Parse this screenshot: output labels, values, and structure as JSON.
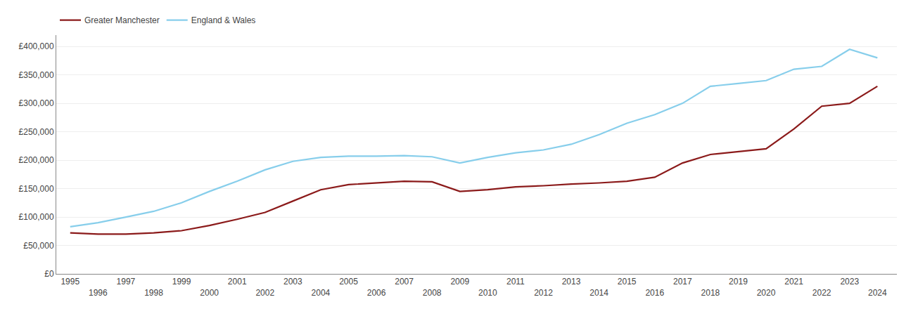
{
  "chart_data": {
    "type": "line",
    "series": [
      {
        "name": "Greater Manchester",
        "color": "#8B1A1A",
        "x": [
          1995,
          1996,
          1997,
          1998,
          1999,
          2000,
          2001,
          2002,
          2003,
          2004,
          2005,
          2006,
          2007,
          2008,
          2009,
          2010,
          2011,
          2012,
          2013,
          2014,
          2015,
          2016,
          2017,
          2018,
          2019,
          2020,
          2021,
          2022,
          2023,
          2024
        ],
        "values": [
          72000,
          70000,
          70000,
          72000,
          76000,
          85000,
          96000,
          108000,
          128000,
          148000,
          157000,
          160000,
          163000,
          162000,
          145000,
          148000,
          153000,
          155000,
          158000,
          160000,
          163000,
          170000,
          195000,
          210000,
          215000,
          220000,
          255000,
          295000,
          300000,
          330000
        ]
      },
      {
        "name": "England & Wales",
        "color": "#87CEEB",
        "x": [
          1995,
          1996,
          1997,
          1998,
          1999,
          2000,
          2001,
          2002,
          2003,
          2004,
          2005,
          2006,
          2007,
          2008,
          2009,
          2010,
          2011,
          2012,
          2013,
          2014,
          2015,
          2016,
          2017,
          2018,
          2019,
          2020,
          2021,
          2022,
          2023,
          2024
        ],
        "values": [
          83000,
          90000,
          100000,
          110000,
          125000,
          145000,
          163000,
          183000,
          198000,
          205000,
          207000,
          207000,
          208000,
          206000,
          195000,
          205000,
          213000,
          218000,
          228000,
          245000,
          265000,
          280000,
          300000,
          330000,
          335000,
          340000,
          360000,
          365000,
          395000,
          380000
        ]
      }
    ],
    "xlim": [
      1994.5,
      2024.7
    ],
    "xticks": [
      1995,
      1996,
      1997,
      1998,
      1999,
      2000,
      2001,
      2002,
      2003,
      2004,
      2005,
      2006,
      2007,
      2008,
      2009,
      2010,
      2011,
      2012,
      2013,
      2014,
      2015,
      2016,
      2017,
      2018,
      2019,
      2020,
      2021,
      2022,
      2023,
      2024
    ],
    "ylim": [
      0,
      420000
    ],
    "yticks": [
      {
        "value": 0,
        "label": "£0"
      },
      {
        "value": 50000,
        "label": "£50,000"
      },
      {
        "value": 100000,
        "label": "£100,000"
      },
      {
        "value": 150000,
        "label": "£150,000"
      },
      {
        "value": 200000,
        "label": "£200,000"
      },
      {
        "value": 250000,
        "label": "£250,000"
      },
      {
        "value": 300000,
        "label": "£300,000"
      },
      {
        "value": 350000,
        "label": "£350,000"
      },
      {
        "value": 400000,
        "label": "£400,000"
      }
    ],
    "grid": true,
    "legend": "upper left"
  }
}
